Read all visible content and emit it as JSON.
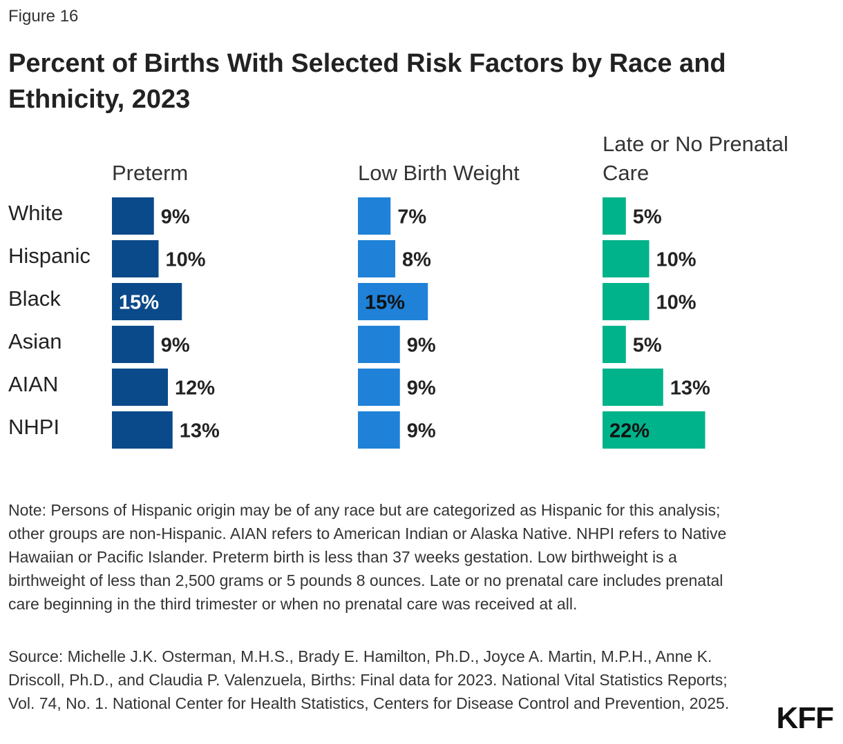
{
  "figure_label": "Figure 16",
  "chart_data": {
    "type": "bar",
    "orientation": "horizontal",
    "title": "Percent of Births With Selected Risk Factors by Race and Ethnicity, 2023",
    "categories": [
      "White",
      "Hispanic",
      "Black",
      "Asian",
      "AIAN",
      "NHPI"
    ],
    "series": [
      {
        "name": "Preterm",
        "color": "#0b4a8a",
        "values": [
          9,
          10,
          15,
          9,
          12,
          13
        ],
        "value_labels": [
          "9%",
          "10%",
          "15%",
          "9%",
          "12%",
          "13%"
        ]
      },
      {
        "name": "Low Birth Weight",
        "color": "#1f82d8",
        "values": [
          7,
          8,
          15,
          9,
          9,
          9
        ],
        "value_labels": [
          "7%",
          "8%",
          "15%",
          "9%",
          "9%",
          "9%"
        ]
      },
      {
        "name": "Late or No Prenatal Care",
        "color": "#00b38a",
        "values": [
          5,
          10,
          10,
          5,
          13,
          22
        ],
        "value_labels": [
          "5%",
          "10%",
          "10%",
          "5%",
          "13%",
          "22%"
        ]
      }
    ]
  },
  "note": "Note: Persons of Hispanic origin may be of any race but are categorized as Hispanic for this analysis; other groups are non-Hispanic. AIAN refers to American Indian or Alaska Native. NHPI refers to Native Hawaiian or Pacific Islander.  Preterm birth is less than 37 weeks gestation. Low birthweight is a birthweight of less than 2,500 grams or 5 pounds 8 ounces. Late or no prenatal care includes prenatal care beginning in the third trimester or when no prenatal care was received at all.",
  "source": "Source: Michelle J.K. Osterman, M.H.S., Brady E. Hamilton, Ph.D., Joyce A. Martin, M.P.H., Anne K. Driscoll, Ph.D., and Claudia P. Valenzuela, Births: Final data for 2023. National Vital Statistics Reports; Vol. 74, No. 1. National Center for Health Statistics, Centers for Disease Control and Prevention, 2025.",
  "logo": "KFF"
}
